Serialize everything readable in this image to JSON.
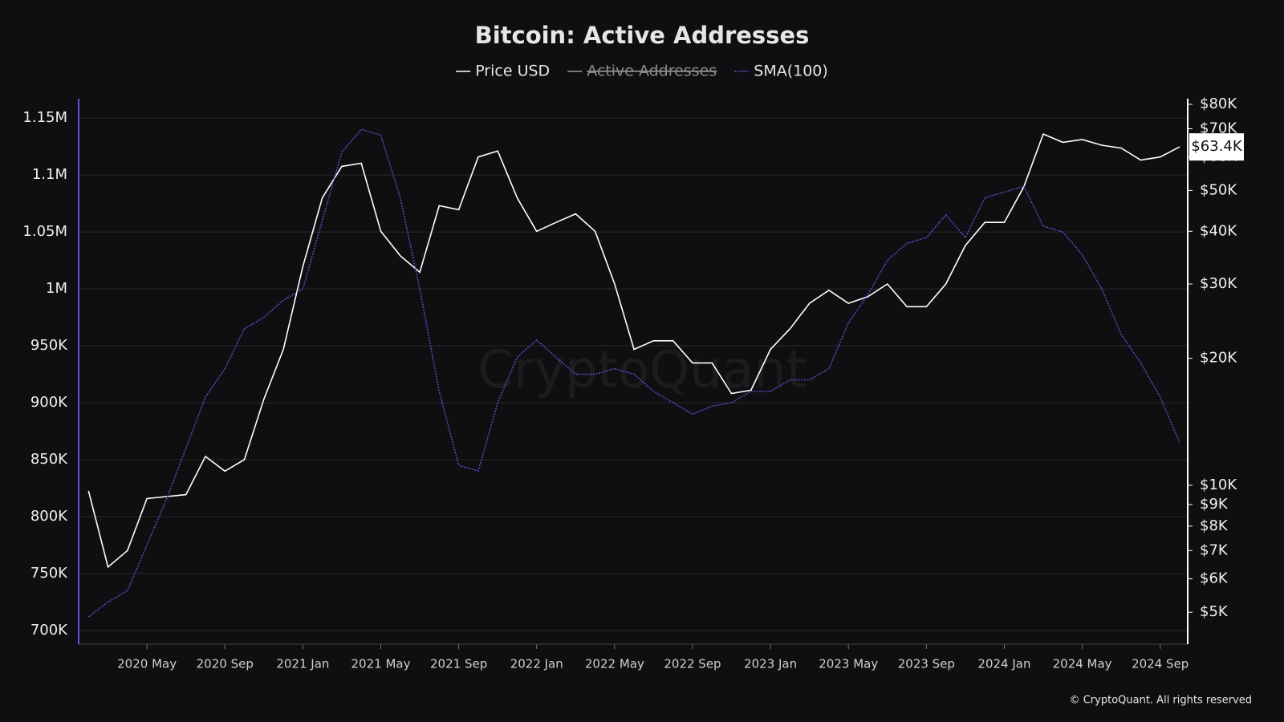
{
  "chart_data": {
    "type": "line",
    "title": "Bitcoin: Active Addresses",
    "watermark": "CryptoQuant",
    "footer": "© CryptoQuant. All rights reserved",
    "x": [
      "2020-02",
      "2020-03",
      "2020-04",
      "2020-05",
      "2020-06",
      "2020-07",
      "2020-08",
      "2020-09",
      "2020-10",
      "2020-11",
      "2020-12",
      "2021-01",
      "2021-02",
      "2021-03",
      "2021-04",
      "2021-05",
      "2021-06",
      "2021-07",
      "2021-08",
      "2021-09",
      "2021-10",
      "2021-11",
      "2021-12",
      "2022-01",
      "2022-02",
      "2022-03",
      "2022-04",
      "2022-05",
      "2022-06",
      "2022-07",
      "2022-08",
      "2022-09",
      "2022-10",
      "2022-11",
      "2022-12",
      "2023-01",
      "2023-02",
      "2023-03",
      "2023-04",
      "2023-05",
      "2023-06",
      "2023-07",
      "2023-08",
      "2023-09",
      "2023-10",
      "2023-11",
      "2023-12",
      "2024-01",
      "2024-02",
      "2024-03",
      "2024-04",
      "2024-05",
      "2024-06",
      "2024-07",
      "2024-08",
      "2024-09",
      "2024-10"
    ],
    "xlim": [
      "2020-01",
      "2024-10"
    ],
    "xticks": [
      {
        "value": "2020-05",
        "label": "2020 May"
      },
      {
        "value": "2020-09",
        "label": "2020 Sep"
      },
      {
        "value": "2021-01",
        "label": "2021 Jan"
      },
      {
        "value": "2021-05",
        "label": "2021 May"
      },
      {
        "value": "2021-09",
        "label": "2021 Sep"
      },
      {
        "value": "2022-01",
        "label": "2022 Jan"
      },
      {
        "value": "2022-05",
        "label": "2022 May"
      },
      {
        "value": "2022-09",
        "label": "2022 Sep"
      },
      {
        "value": "2023-01",
        "label": "2023 Jan"
      },
      {
        "value": "2023-05",
        "label": "2023 May"
      },
      {
        "value": "2023-09",
        "label": "2023 Sep"
      },
      {
        "value": "2024-01",
        "label": "2024 Jan"
      },
      {
        "value": "2024-05",
        "label": "2024 May"
      },
      {
        "value": "2024-09",
        "label": "2024 Sep"
      }
    ],
    "ylim": [
      688000,
      1167000
    ],
    "yticks": [
      {
        "value": 700000,
        "label": "700K"
      },
      {
        "value": 750000,
        "label": "750K"
      },
      {
        "value": 800000,
        "label": "800K"
      },
      {
        "value": 850000,
        "label": "850K"
      },
      {
        "value": 900000,
        "label": "900K"
      },
      {
        "value": 950000,
        "label": "950K"
      },
      {
        "value": 1000000,
        "label": "1M"
      },
      {
        "value": 1050000,
        "label": "1.05M"
      },
      {
        "value": 1100000,
        "label": "1.1M"
      },
      {
        "value": 1150000,
        "label": "1.15M"
      }
    ],
    "y2lim": [
      4200,
      82500
    ],
    "y2_log": true,
    "y2ticks": [
      {
        "value": 5000,
        "label": "$5K"
      },
      {
        "value": 6000,
        "label": "$6K"
      },
      {
        "value": 7000,
        "label": "$7K"
      },
      {
        "value": 8000,
        "label": "$8K"
      },
      {
        "value": 9000,
        "label": "$9K"
      },
      {
        "value": 10000,
        "label": "$10K"
      },
      {
        "value": 20000,
        "label": "$20K"
      },
      {
        "value": 30000,
        "label": "$30K"
      },
      {
        "value": 40000,
        "label": "$40K"
      },
      {
        "value": 50000,
        "label": "$50K"
      },
      {
        "value": 60000,
        "label": "$60K"
      },
      {
        "value": 70000,
        "label": "$70K"
      },
      {
        "value": 80000,
        "label": "$80K"
      }
    ],
    "grid": true,
    "series": [
      {
        "name": "Price USD",
        "color": "#ffffff",
        "axis": "y2",
        "visible": true,
        "values": [
          9700,
          6400,
          7000,
          9300,
          9400,
          9500,
          11700,
          10800,
          11500,
          16000,
          21000,
          33000,
          48000,
          57000,
          58000,
          40000,
          35000,
          32000,
          46000,
          45000,
          60000,
          62000,
          48000,
          40000,
          42000,
          44000,
          40000,
          30000,
          21000,
          22000,
          22000,
          19500,
          19500,
          16500,
          16800,
          21000,
          23500,
          27000,
          29000,
          27000,
          28000,
          30000,
          26500,
          26500,
          30000,
          37000,
          42000,
          42000,
          51000,
          68000,
          65000,
          66000,
          64000,
          63000,
          59000,
          60000,
          63400
        ],
        "value_labels": [
          null,
          null,
          null,
          null,
          null,
          null,
          null,
          null,
          null,
          null,
          null,
          null,
          null,
          null,
          null,
          null,
          null,
          null,
          null,
          null,
          null,
          null,
          null,
          null,
          null,
          null,
          null,
          null,
          null,
          null,
          null,
          null,
          null,
          null,
          null,
          null,
          null,
          null,
          null,
          null,
          null,
          null,
          null,
          null,
          null,
          null,
          null,
          null,
          null,
          null,
          null,
          null,
          null,
          null,
          null,
          null,
          "$63.4K"
        ]
      },
      {
        "name": "Active Addresses",
        "color": "#9a9a9a",
        "visible": false,
        "values": [
          null,
          null,
          null,
          null,
          null,
          null,
          null,
          null,
          null,
          null,
          null,
          null,
          null,
          null,
          null,
          null,
          null,
          null,
          null,
          null,
          null,
          null,
          null,
          null,
          null,
          null,
          null,
          null,
          null,
          null,
          null,
          null,
          null,
          null,
          null,
          null,
          null,
          null,
          null,
          null,
          null,
          null,
          null,
          null,
          null,
          null,
          null,
          null,
          null,
          null,
          null,
          null,
          null,
          null,
          null,
          null,
          null
        ]
      },
      {
        "name": "SMA(100)",
        "color": "#5d52d9",
        "visible": true,
        "values": [
          712000,
          725000,
          735000,
          775000,
          815000,
          860000,
          905000,
          930000,
          965000,
          975000,
          990000,
          1000000,
          1060000,
          1120000,
          1140000,
          1135000,
          1080000,
          1000000,
          910000,
          845000,
          840000,
          900000,
          940000,
          955000,
          940000,
          925000,
          925000,
          930000,
          925000,
          910000,
          900000,
          890000,
          897000,
          900000,
          910000,
          910000,
          920000,
          920000,
          930000,
          970000,
          995000,
          1025000,
          1040000,
          1045000,
          1065000,
          1045000,
          1080000,
          1085000,
          1090000,
          1055000,
          1050000,
          1030000,
          1000000,
          960000,
          935000,
          905000,
          865000
        ]
      }
    ]
  }
}
